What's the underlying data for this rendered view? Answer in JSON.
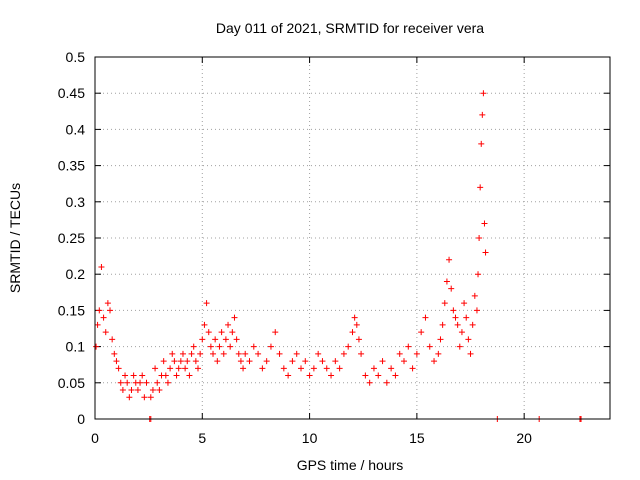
{
  "chart_data": {
    "type": "scatter",
    "title": "Day 011 of 2021, SRMTID for receiver vera",
    "xlabel": "GPS time / hours",
    "ylabel": "SRMTID / TECUs",
    "xlim": [
      0,
      24
    ],
    "ylim": [
      0,
      0.5
    ],
    "x_ticks": [
      0,
      5,
      10,
      15,
      20
    ],
    "x_tick_labels": [
      "0",
      "5",
      "10",
      "15",
      "20"
    ],
    "y_ticks": [
      0,
      0.05,
      0.1,
      0.15,
      0.2,
      0.25,
      0.3,
      0.35,
      0.4,
      0.45,
      0.5
    ],
    "y_tick_labels": [
      "0",
      "0.05",
      "0.1",
      "0.15",
      "0.2",
      "0.25",
      "0.3",
      "0.35",
      "0.4",
      "0.45",
      "0.5"
    ],
    "grid": true,
    "marker": "+",
    "color": "#ff0000",
    "series": [
      {
        "name": "SRMTID",
        "x": [
          0.05,
          0.12,
          0.2,
          0.3,
          0.4,
          0.5,
          0.6,
          0.7,
          0.8,
          0.9,
          1.0,
          1.1,
          1.2,
          1.3,
          1.4,
          1.5,
          1.6,
          1.7,
          1.8,
          1.9,
          2.0,
          2.1,
          2.2,
          2.3,
          2.4,
          2.6,
          2.7,
          2.8,
          2.9,
          3.0,
          3.1,
          3.2,
          3.3,
          3.4,
          3.5,
          3.6,
          3.7,
          3.8,
          3.9,
          4.0,
          4.1,
          4.2,
          4.3,
          4.4,
          4.5,
          4.6,
          4.7,
          4.8,
          4.9,
          5.0,
          5.1,
          5.2,
          5.3,
          5.4,
          5.5,
          5.6,
          5.7,
          5.8,
          5.9,
          6.0,
          6.1,
          6.2,
          6.3,
          6.4,
          6.5,
          6.6,
          6.7,
          6.8,
          6.9,
          7.0,
          7.2,
          7.4,
          7.6,
          7.8,
          8.0,
          8.2,
          8.4,
          8.6,
          8.8,
          9.0,
          9.2,
          9.4,
          9.6,
          9.8,
          10.0,
          10.2,
          10.4,
          10.6,
          10.8,
          11.0,
          11.2,
          11.4,
          11.6,
          11.8,
          12.0,
          12.1,
          12.2,
          12.3,
          12.4,
          12.6,
          12.8,
          13.0,
          13.2,
          13.4,
          13.6,
          13.8,
          14.0,
          14.2,
          14.4,
          14.6,
          14.8,
          15.0,
          15.2,
          15.4,
          15.6,
          15.8,
          16.0,
          16.1,
          16.2,
          16.3,
          16.4,
          16.5,
          16.6,
          16.7,
          16.8,
          16.9,
          17.0,
          17.1,
          17.2,
          17.3,
          17.4,
          17.5,
          17.6,
          17.7,
          17.8,
          17.85,
          17.9,
          17.95,
          18.0,
          18.05,
          18.1,
          18.15,
          18.2,
          2.55,
          2.6,
          18.75,
          20.7,
          22.6,
          22.65
        ],
        "y": [
          0.1,
          0.13,
          0.15,
          0.21,
          0.14,
          0.12,
          0.16,
          0.15,
          0.11,
          0.09,
          0.08,
          0.07,
          0.05,
          0.04,
          0.06,
          0.05,
          0.03,
          0.04,
          0.06,
          0.05,
          0.04,
          0.05,
          0.06,
          0.03,
          0.05,
          0.03,
          0.04,
          0.07,
          0.05,
          0.04,
          0.06,
          0.08,
          0.06,
          0.05,
          0.07,
          0.09,
          0.08,
          0.06,
          0.07,
          0.08,
          0.09,
          0.07,
          0.08,
          0.06,
          0.09,
          0.1,
          0.08,
          0.07,
          0.09,
          0.11,
          0.13,
          0.16,
          0.12,
          0.1,
          0.09,
          0.11,
          0.08,
          0.1,
          0.12,
          0.09,
          0.11,
          0.13,
          0.1,
          0.12,
          0.14,
          0.11,
          0.09,
          0.08,
          0.07,
          0.09,
          0.08,
          0.1,
          0.09,
          0.07,
          0.08,
          0.1,
          0.12,
          0.09,
          0.07,
          0.06,
          0.08,
          0.09,
          0.07,
          0.08,
          0.06,
          0.07,
          0.09,
          0.08,
          0.07,
          0.06,
          0.08,
          0.07,
          0.09,
          0.1,
          0.12,
          0.14,
          0.13,
          0.11,
          0.09,
          0.06,
          0.05,
          0.07,
          0.06,
          0.08,
          0.05,
          0.07,
          0.06,
          0.09,
          0.08,
          0.1,
          0.07,
          0.09,
          0.12,
          0.14,
          0.1,
          0.08,
          0.09,
          0.11,
          0.13,
          0.16,
          0.19,
          0.22,
          0.18,
          0.15,
          0.14,
          0.13,
          0.1,
          0.12,
          0.16,
          0.14,
          0.11,
          0.09,
          0.13,
          0.17,
          0.15,
          0.2,
          0.25,
          0.32,
          0.38,
          0.42,
          0.45,
          0.27,
          0.23,
          0.0,
          0.0,
          0.0,
          0.0,
          0.0,
          0.0
        ]
      }
    ]
  }
}
